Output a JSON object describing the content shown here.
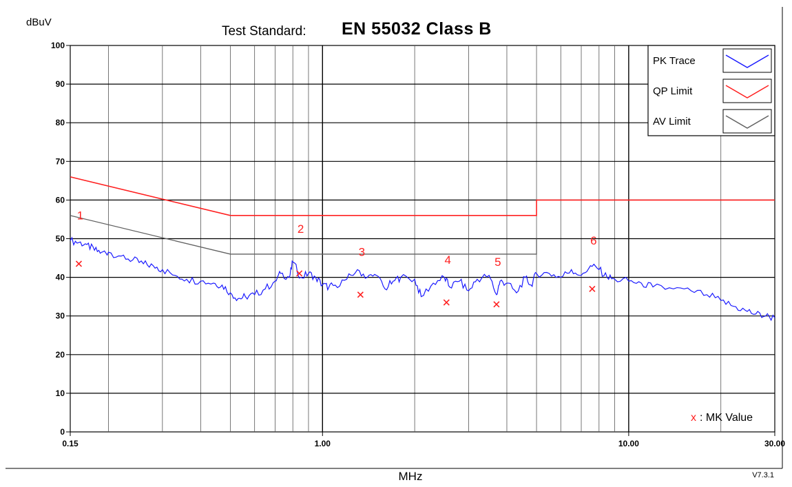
{
  "chart_data": {
    "type": "line",
    "title_prefix": "Test Standard:",
    "title": "EN 55032 Class B",
    "ylabel": "dBuV",
    "xlabel": "MHz",
    "version": "V7.3.1",
    "x_scale": "log",
    "xlim": [
      0.15,
      30.0
    ],
    "ylim": [
      0,
      100
    ],
    "grid": true,
    "yticks": [
      0,
      10,
      20,
      30,
      40,
      50,
      60,
      70,
      80,
      90,
      100
    ],
    "ytick_labels": [
      "0",
      "10",
      "20",
      "30",
      "40",
      "50",
      "60",
      "70",
      "80",
      "90",
      "100"
    ],
    "xticks": [
      0.15,
      1.0,
      10.0,
      30.0
    ],
    "xtick_labels": [
      "0.15",
      "1.00",
      "10.00",
      "30.00"
    ],
    "legend_position": "top-right",
    "legend": [
      {
        "label": "PK Trace",
        "color": "#1a1aff"
      },
      {
        "label": "QP Limit",
        "color": "#ff2020"
      },
      {
        "label": "AV Limit",
        "color": "#606060"
      }
    ],
    "mk_legend": {
      "symbol": "x",
      "label": ": MK Value"
    },
    "series": [
      {
        "name": "PK Trace",
        "color": "#1a1aff",
        "points": [
          [
            0.15,
            49.5
          ],
          [
            0.16,
            49.0
          ],
          [
            0.17,
            48.5
          ],
          [
            0.18,
            47.0
          ],
          [
            0.19,
            46.5
          ],
          [
            0.2,
            46.5
          ],
          [
            0.22,
            45.5
          ],
          [
            0.24,
            44.5
          ],
          [
            0.26,
            43.5
          ],
          [
            0.28,
            43.0
          ],
          [
            0.3,
            42.0
          ],
          [
            0.33,
            40.5
          ],
          [
            0.36,
            39.5
          ],
          [
            0.4,
            39.0
          ],
          [
            0.44,
            38.5
          ],
          [
            0.47,
            38.0
          ],
          [
            0.5,
            36.0
          ],
          [
            0.53,
            34.5
          ],
          [
            0.56,
            35.0
          ],
          [
            0.6,
            35.5
          ],
          [
            0.65,
            37.0
          ],
          [
            0.7,
            39.0
          ],
          [
            0.73,
            41.0
          ],
          [
            0.78,
            40.0
          ],
          [
            0.8,
            44.0
          ],
          [
            0.85,
            40.0
          ],
          [
            0.9,
            41.0
          ],
          [
            0.95,
            40.0
          ],
          [
            1.0,
            38.0
          ],
          [
            1.05,
            37.5
          ],
          [
            1.1,
            38.0
          ],
          [
            1.2,
            39.5
          ],
          [
            1.3,
            42.0
          ],
          [
            1.4,
            40.0
          ],
          [
            1.5,
            40.5
          ],
          [
            1.6,
            37.0
          ],
          [
            1.7,
            39.0
          ],
          [
            1.8,
            40.0
          ],
          [
            2.0,
            39.5
          ],
          [
            2.1,
            35.0
          ],
          [
            2.3,
            38.5
          ],
          [
            2.5,
            40.0
          ],
          [
            2.6,
            37.5
          ],
          [
            2.8,
            39.0
          ],
          [
            3.0,
            36.5
          ],
          [
            3.2,
            39.5
          ],
          [
            3.5,
            40.5
          ],
          [
            3.7,
            35.5
          ],
          [
            3.8,
            39.0
          ],
          [
            4.0,
            38.5
          ],
          [
            4.3,
            36.0
          ],
          [
            4.6,
            40.0
          ],
          [
            4.8,
            38.0
          ],
          [
            5.0,
            41.0
          ],
          [
            5.5,
            41.0
          ],
          [
            6.0,
            40.0
          ],
          [
            6.5,
            42.0
          ],
          [
            7.0,
            40.5
          ],
          [
            7.5,
            43.0
          ],
          [
            8.0,
            42.0
          ],
          [
            8.5,
            40.0
          ],
          [
            9.0,
            39.5
          ],
          [
            10.0,
            39.0
          ],
          [
            11.0,
            38.5
          ],
          [
            12.0,
            37.5
          ],
          [
            14.0,
            37.0
          ],
          [
            16.0,
            36.5
          ],
          [
            18.0,
            35.5
          ],
          [
            20.0,
            34.0
          ],
          [
            22.0,
            32.5
          ],
          [
            24.0,
            31.5
          ],
          [
            26.0,
            30.5
          ],
          [
            28.0,
            30.0
          ],
          [
            30.0,
            29.5
          ]
        ]
      },
      {
        "name": "QP Limit",
        "color": "#ff2020",
        "points": [
          [
            0.15,
            66.0
          ],
          [
            0.5,
            56.0
          ],
          [
            5.0,
            56.0
          ],
          [
            5.0,
            60.0
          ],
          [
            30.0,
            60.0
          ]
        ]
      },
      {
        "name": "AV Limit",
        "color": "#606060",
        "points": [
          [
            0.15,
            56.0
          ],
          [
            0.5,
            46.0
          ],
          [
            5.0,
            46.0
          ],
          [
            5.0,
            50.0
          ]
        ]
      }
    ],
    "markers": [
      {
        "label": "1",
        "x": 0.16,
        "y": 43.5,
        "label_y": 55.0
      },
      {
        "label": "2",
        "x": 0.84,
        "y": 41.0,
        "label_y": 51.5
      },
      {
        "label": "3",
        "x": 1.33,
        "y": 35.5,
        "label_y": 45.5
      },
      {
        "label": "4",
        "x": 2.54,
        "y": 33.5,
        "label_y": 43.5
      },
      {
        "label": "5",
        "x": 3.7,
        "y": 33.0,
        "label_y": 43.0
      },
      {
        "label": "6",
        "x": 7.6,
        "y": 37.0,
        "label_y": 48.5
      }
    ]
  }
}
